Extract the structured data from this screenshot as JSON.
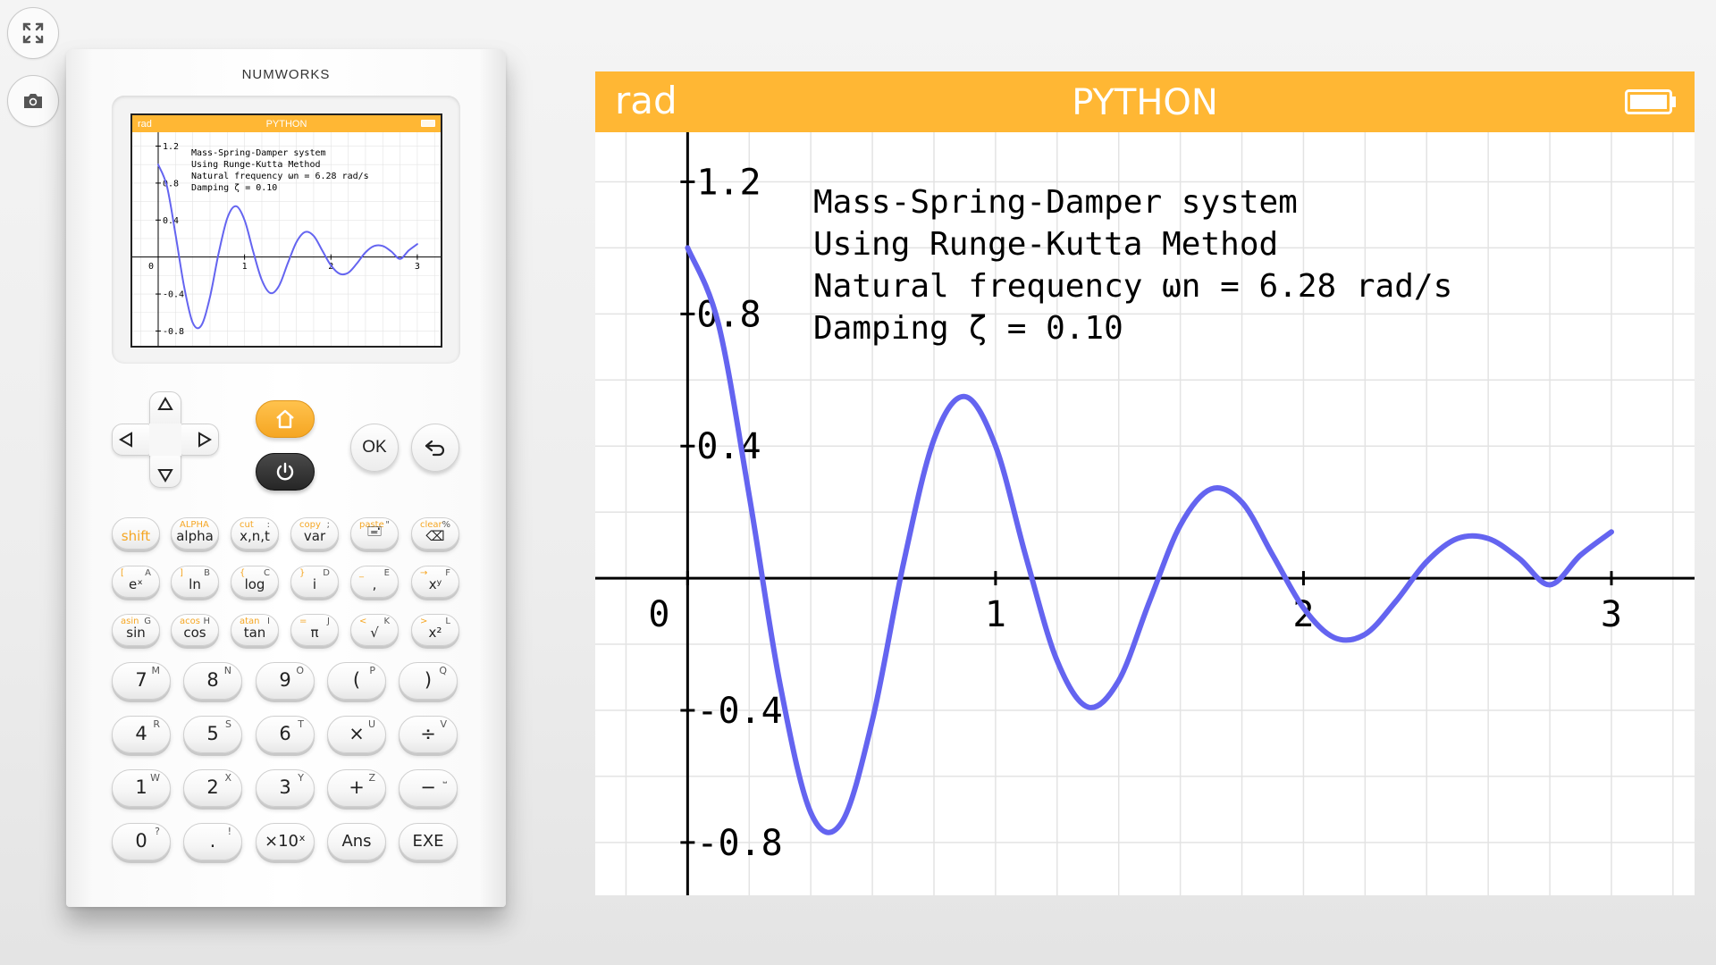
{
  "toolbar": {
    "expand_icon": "fullscreen-expand-icon",
    "camera_icon": "camera-icon"
  },
  "calculator": {
    "brand": "NUMWORKS",
    "status_bar": {
      "angle_mode": "rad",
      "app_name": "PYTHON"
    },
    "nav": {
      "ok_label": "OK"
    },
    "keys_row1": [
      {
        "main": "shift",
        "sup_l": "",
        "sup_r": "",
        "orange": true
      },
      {
        "main": "alpha",
        "sup_l": "ALPHA",
        "sup_r": ""
      },
      {
        "main": "x,n,t",
        "sup_l": "cut",
        "sup_r": ":"
      },
      {
        "main": "var",
        "sup_l": "copy",
        "sup_r": ";"
      },
      {
        "main": "🖃",
        "sup_l": "paste",
        "sup_r": "\""
      },
      {
        "main": "⌫",
        "sup_l": "clear",
        "sup_r": "%"
      }
    ],
    "keys_row2": [
      {
        "main": "eˣ",
        "sup_l": "[",
        "sup_r": "A"
      },
      {
        "main": "ln",
        "sup_l": "]",
        "sup_r": "B"
      },
      {
        "main": "log",
        "sup_l": "{",
        "sup_r": "C"
      },
      {
        "main": "i",
        "sup_l": "}",
        "sup_r": "D"
      },
      {
        "main": ",",
        "sup_l": "_",
        "sup_r": "E"
      },
      {
        "main": "xʸ",
        "sup_l": "→",
        "sup_r": "F"
      }
    ],
    "keys_row3": [
      {
        "main": "sin",
        "sup_l": "asin",
        "sup_r": "G"
      },
      {
        "main": "cos",
        "sup_l": "acos",
        "sup_r": "H"
      },
      {
        "main": "tan",
        "sup_l": "atan",
        "sup_r": "I"
      },
      {
        "main": "π",
        "sup_l": "=",
        "sup_r": "J"
      },
      {
        "main": "√",
        "sup_l": "<",
        "sup_r": "K"
      },
      {
        "main": "x²",
        "sup_l": ">",
        "sup_r": "L"
      }
    ],
    "keys_num": [
      [
        {
          "main": "7",
          "sup": "M"
        },
        {
          "main": "8",
          "sup": "N"
        },
        {
          "main": "9",
          "sup": "O"
        },
        {
          "main": "(",
          "sup": "P"
        },
        {
          "main": ")",
          "sup": "Q"
        }
      ],
      [
        {
          "main": "4",
          "sup": "R"
        },
        {
          "main": "5",
          "sup": "S"
        },
        {
          "main": "6",
          "sup": "T"
        },
        {
          "main": "×",
          "sup": "U"
        },
        {
          "main": "÷",
          "sup": "V"
        }
      ],
      [
        {
          "main": "1",
          "sup": "W"
        },
        {
          "main": "2",
          "sup": "X"
        },
        {
          "main": "3",
          "sup": "Y"
        },
        {
          "main": "+",
          "sup": "Z"
        },
        {
          "main": "−",
          "sup": "⎵"
        }
      ],
      [
        {
          "main": "0",
          "sup": "?"
        },
        {
          "main": ".",
          "sup": "!"
        },
        {
          "main": "×10ˣ",
          "sup": ""
        },
        {
          "main": "Ans",
          "sup": ""
        },
        {
          "main": "EXE",
          "sup": ""
        }
      ]
    ]
  },
  "screen": {
    "angle_mode": "rad",
    "app_name": "PYTHON",
    "text_lines": [
      "Mass-Spring-Damper system",
      "Using Runge-Kutta Method",
      "Natural frequency ωn = 6.28 rad/s",
      "Damping ζ = 0.10"
    ],
    "colors": {
      "header": "#ffb734",
      "curve": "#6464f0",
      "grid": "#e3e3e3",
      "axis": "#000000"
    }
  },
  "chart_data": {
    "type": "line",
    "title": "",
    "xlabel": "",
    "ylabel": "",
    "xlim": [
      -0.3,
      3.27
    ],
    "ylim": [
      -0.96,
      1.35
    ],
    "x_ticks": [
      0,
      1,
      2,
      3
    ],
    "x_tick_labels": [
      "0",
      "1",
      "2",
      "3"
    ],
    "y_ticks": [
      -0.8,
      -0.4,
      0.4,
      0.8,
      1.2
    ],
    "y_tick_labels": [
      "-0.8",
      "-0.4",
      "0.4",
      "0.8",
      "1.2"
    ],
    "grid": true,
    "series": [
      {
        "x": [
          0,
          0.1,
          0.2,
          0.3,
          0.4,
          0.5,
          0.6,
          0.7,
          0.8,
          0.9,
          1.0,
          1.1,
          1.2,
          1.3,
          1.4,
          1.5,
          1.6,
          1.7,
          1.8,
          1.9,
          2.0,
          2.1,
          2.2,
          2.3,
          2.4,
          2.5,
          2.6,
          2.7,
          2.8,
          2.9,
          3.0
        ],
        "y": [
          1.0,
          0.77,
          0.25,
          -0.32,
          -0.71,
          -0.74,
          -0.43,
          0.04,
          0.42,
          0.55,
          0.4,
          0.06,
          -0.25,
          -0.39,
          -0.31,
          -0.07,
          0.16,
          0.27,
          0.23,
          0.07,
          -0.09,
          -0.18,
          -0.17,
          -0.07,
          0.05,
          0.12,
          0.12,
          0.06,
          -0.02,
          0.07,
          0.14
        ]
      }
    ]
  }
}
